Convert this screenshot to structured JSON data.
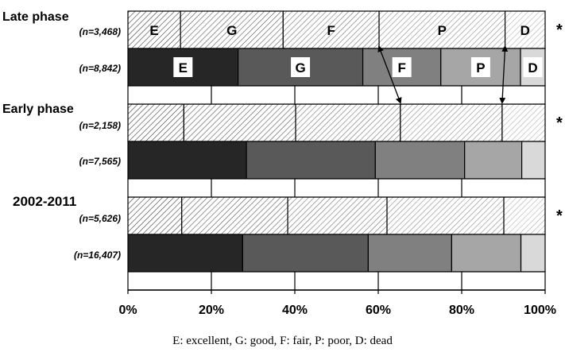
{
  "chart_data": {
    "type": "bar",
    "orientation": "horizontal",
    "stacked": true,
    "xlim": [
      0,
      100
    ],
    "x_tick_labels": [
      "0%",
      "20%",
      "40%",
      "60%",
      "80%",
      "100%"
    ],
    "categories": [
      "E",
      "G",
      "F",
      "P",
      "D"
    ],
    "groups": [
      {
        "label": "Late phase",
        "rows": [
          {
            "n_label": "(n=3,468)",
            "style": "hatched",
            "values": [
              12.6,
              24.6,
              23.0,
              30.2,
              9.6
            ],
            "segment_labels": [
              "E",
              "G",
              "F",
              "P",
              "D"
            ],
            "significance": "*"
          },
          {
            "n_label": "(n=8,842)",
            "style": "solid",
            "values": [
              26.4,
              29.9,
              18.7,
              19.1,
              5.9
            ],
            "segment_labels": [
              "E",
              "G",
              "F",
              "P",
              "D"
            ],
            "significance": ""
          }
        ]
      },
      {
        "label": "Early phase",
        "rows": [
          {
            "n_label": "(n=2,158)",
            "style": "hatched",
            "values": [
              13.4,
              26.8,
              25.1,
              24.4,
              10.3
            ],
            "segment_labels": [],
            "significance": "*"
          },
          {
            "n_label": "(n=7,565)",
            "style": "solid",
            "values": [
              28.4,
              30.9,
              21.4,
              13.7,
              5.6
            ],
            "segment_labels": [],
            "significance": ""
          }
        ]
      },
      {
        "label": "2002-2011",
        "rows": [
          {
            "n_label": "(n=5,626)",
            "style": "hatched",
            "values": [
              12.9,
              25.4,
              23.8,
              28.0,
              9.9
            ],
            "segment_labels": [],
            "significance": "*"
          },
          {
            "n_label": "(n=16,407)",
            "style": "solid",
            "values": [
              27.5,
              30.1,
              20.0,
              16.6,
              5.8
            ],
            "segment_labels": [],
            "significance": ""
          }
        ]
      }
    ],
    "footnote": "E: excellent,  G: good,  F: fair,  P: poor,  D: dead",
    "colors": {
      "solid": [
        "#262626",
        "#595959",
        "#808080",
        "#a6a6a6",
        "#d9d9d9"
      ],
      "hatched_stroke": [
        "#3a3a3a",
        "#555555",
        "#6e6e6e",
        "#8a8a8a",
        "#b0b0b0"
      ]
    }
  }
}
